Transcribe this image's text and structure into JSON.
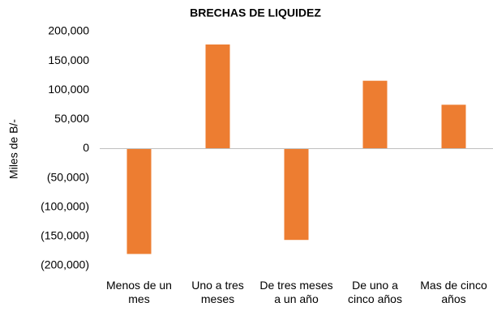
{
  "chart_data": {
    "type": "bar",
    "title": "BRECHAS DE LIQUIDEZ",
    "y_label": "Miles de B/-",
    "categories": [
      "Menos de un mes",
      "Uno a tres meses",
      "De tres meses a un año",
      "De uno a cinco años",
      "Mas de cinco años"
    ],
    "values": [
      -180000,
      178000,
      -156000,
      116000,
      75000
    ],
    "color": "#ed7d31",
    "ylim": [
      -200000,
      200000
    ],
    "yticks": [
      {
        "value": -200000,
        "label": "(200,000)"
      },
      {
        "value": -150000,
        "label": "(150,000)"
      },
      {
        "value": -100000,
        "label": "(100,000)"
      },
      {
        "value": -50000,
        "label": "(50,000)"
      },
      0,
      {
        "value": 50000,
        "label": "50,000"
      },
      {
        "value": 100000,
        "label": "100,000"
      },
      {
        "value": 150000,
        "label": "150,000"
      },
      {
        "value": 200000,
        "label": "200,000"
      }
    ],
    "grid": false
  }
}
